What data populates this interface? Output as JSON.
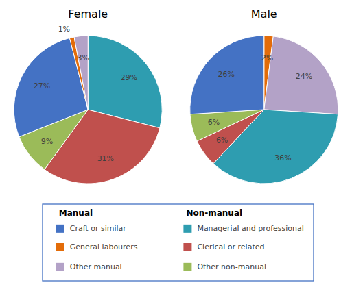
{
  "chart_data": [
    {
      "type": "pie",
      "title": "Female",
      "values": [
        29,
        31,
        9,
        27,
        1,
        3
      ],
      "value_labels": [
        "29%",
        "31%",
        "9%",
        "27%",
        "1%",
        "3%"
      ],
      "colors": [
        "#2E9DB0",
        "#C0504D",
        "#9BBB59",
        "#4472C4",
        "#E36C09",
        "#B3A2C7"
      ],
      "data_labels": true
    },
    {
      "type": "pie",
      "title": "Male",
      "values": [
        2,
        24,
        36,
        6,
        6,
        26
      ],
      "value_labels": [
        "2%",
        "24%",
        "36%",
        "6%",
        "6%",
        "26%"
      ],
      "colors": [
        "#E36C09",
        "#B3A2C7",
        "#2E9DB0",
        "#C0504D",
        "#9BBB59",
        "#4472C4"
      ],
      "data_labels": true
    }
  ],
  "legend_groups": [
    {
      "title": "Manual",
      "labels": [
        "Craft or similar",
        "General labourers",
        "Other manual"
      ],
      "colors": [
        "#4472C4",
        "#E36C09",
        "#B3A2C7"
      ]
    },
    {
      "title": "Non-manual",
      "labels": [
        "Managerial and professional",
        "Clerical or related",
        "Other non-manual"
      ],
      "colors": [
        "#2E9DB0",
        "#C0504D",
        "#9BBB59"
      ]
    }
  ]
}
